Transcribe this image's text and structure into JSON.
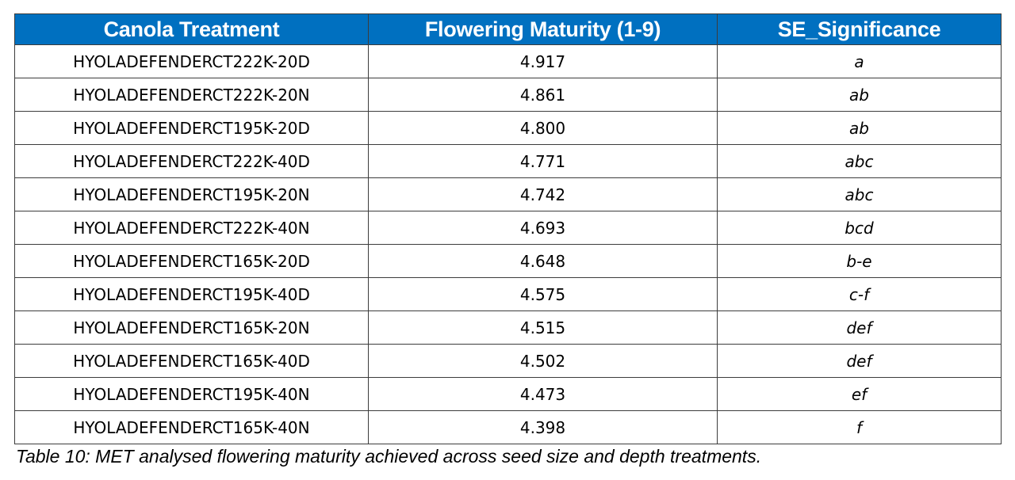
{
  "table": {
    "headers": [
      "Canola Treatment",
      "Flowering Maturity (1-9)",
      "SE_Significance"
    ],
    "rows": [
      [
        "HYOLADEFENDERCT222K-20D",
        "4.917",
        "a"
      ],
      [
        "HYOLADEFENDERCT222K-20N",
        "4.861",
        "ab"
      ],
      [
        "HYOLADEFENDERCT195K-20D",
        "4.800",
        "ab"
      ],
      [
        "HYOLADEFENDERCT222K-40D",
        "4.771",
        "abc"
      ],
      [
        "HYOLADEFENDERCT195K-20N",
        "4.742",
        "abc"
      ],
      [
        "HYOLADEFENDERCT222K-40N",
        "4.693",
        "bcd"
      ],
      [
        "HYOLADEFENDERCT165K-20D",
        "4.648",
        "b-e"
      ],
      [
        "HYOLADEFENDERCT195K-40D",
        "4.575",
        "c-f"
      ],
      [
        "HYOLADEFENDERCT165K-20N",
        "4.515",
        "def"
      ],
      [
        "HYOLADEFENDERCT165K-40D",
        "4.502",
        "def"
      ],
      [
        "HYOLADEFENDERCT195K-40N",
        "4.473",
        "ef"
      ],
      [
        "HYOLADEFENDERCT165K-40N",
        "4.398",
        "f"
      ]
    ]
  },
  "caption": "Table 10: MET analysed flowering maturity achieved across seed size and depth treatments.",
  "colors": {
    "header_bg": "#0070c0",
    "header_text": "#ffffff",
    "border": "#3c3c3c"
  }
}
